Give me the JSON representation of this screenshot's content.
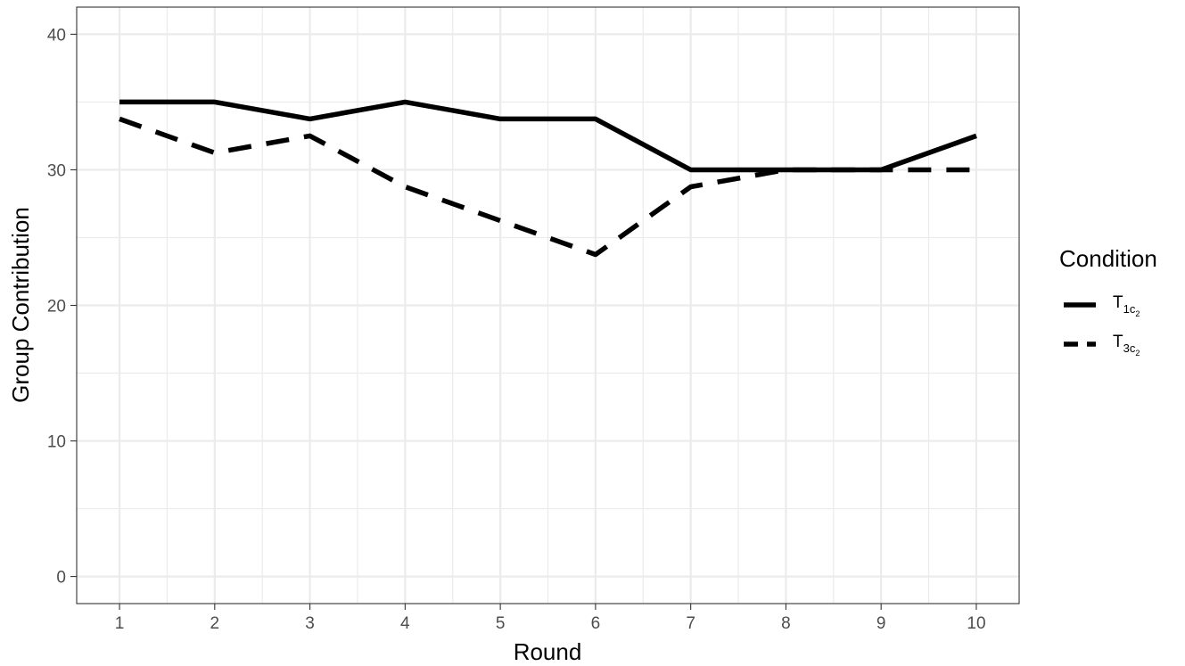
{
  "chart_data": {
    "type": "line",
    "x": [
      1,
      2,
      3,
      4,
      5,
      6,
      7,
      8,
      9,
      10
    ],
    "x_ticks": [
      "1",
      "2",
      "3",
      "4",
      "5",
      "6",
      "7",
      "8",
      "9",
      "10"
    ],
    "y_ticks": [
      "0",
      "10",
      "20",
      "30",
      "40"
    ],
    "xlabel": "Round",
    "ylabel": "Group Contribution",
    "xlim": [
      0.55,
      10.45
    ],
    "ylim": [
      -2,
      42
    ],
    "grid": true,
    "legend": {
      "title": "Condition",
      "placement": "right",
      "entries": [
        {
          "base": "T",
          "sub": "1c",
          "subsub": "2",
          "linestyle": "solid"
        },
        {
          "base": "T",
          "sub": "3c",
          "subsub": "2",
          "linestyle": "dashed"
        }
      ]
    },
    "series": [
      {
        "values": [
          35,
          35,
          33.75,
          35,
          33.75,
          33.75,
          30,
          30,
          30,
          32.5
        ],
        "linestyle": "solid",
        "color": "#000000"
      },
      {
        "values": [
          33.75,
          31.25,
          32.5,
          28.75,
          26.25,
          23.75,
          28.75,
          30,
          30,
          30
        ],
        "linestyle": "dashed",
        "color": "#000000"
      }
    ]
  }
}
